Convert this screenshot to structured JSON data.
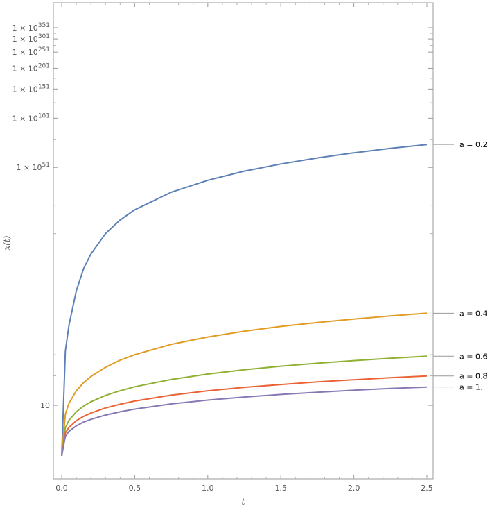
{
  "chart_data": {
    "type": "line",
    "title": "",
    "xlabel": "t",
    "ylabel": "x(t)",
    "y_scale": "log-log",
    "xlim": [
      0,
      2.5
    ],
    "grid": false,
    "legend": "line labels at right end of each curve",
    "x_ticks": [
      "0.0",
      "0.5",
      "1.0",
      "1.5",
      "2.0",
      "2.5"
    ],
    "y_ticks": [
      {
        "value": 10,
        "mantissa": "10",
        "exponent": ""
      },
      {
        "value": "1e51",
        "mantissa": "1 × 10",
        "exponent": "51"
      },
      {
        "value": "1e101",
        "mantissa": "1 × 10",
        "exponent": "101"
      },
      {
        "value": "1e151",
        "mantissa": "1 × 10",
        "exponent": "151"
      },
      {
        "value": "1e201",
        "mantissa": "1 × 10",
        "exponent": "201"
      },
      {
        "value": "1e251",
        "mantissa": "1 × 10",
        "exponent": "251"
      },
      {
        "value": "1e301",
        "mantissa": "1 × 10",
        "exponent": "301"
      },
      {
        "value": "1e351",
        "mantissa": "1 × 10",
        "exponent": "351"
      }
    ],
    "x": [
      0,
      0.025,
      0.05,
      0.1,
      0.15,
      0.2,
      0.3,
      0.4,
      0.5,
      0.75,
      1.0,
      1.25,
      1.5,
      1.75,
      2.0,
      2.25,
      2.5
    ],
    "series": [
      {
        "name": "a = 0.2",
        "color": "#5e81b5",
        "log10_values": [
          0,
          3.2,
          5.0,
          8.6,
          12.0,
          14.9,
          20.0,
          24.3,
          28.1,
          36.0,
          42.6,
          48.4,
          53.5,
          58.2,
          62.5,
          66.5,
          70.2
        ]
      },
      {
        "name": "a = 0.4",
        "color": "#e19c24",
        "log10_values": [
          0,
          0.77,
          1.06,
          1.44,
          1.73,
          1.97,
          2.37,
          2.71,
          3.0,
          3.61,
          4.1,
          4.52,
          4.89,
          5.22,
          5.52,
          5.8,
          6.06
        ]
      },
      {
        "name": "a = 0.6",
        "color": "#8fb032",
        "log10_values": [
          0,
          0.47,
          0.63,
          0.83,
          0.98,
          1.1,
          1.29,
          1.44,
          1.58,
          1.85,
          2.07,
          2.26,
          2.42,
          2.56,
          2.69,
          2.81,
          2.92
        ]
      },
      {
        "name": "a = 0.8",
        "color": "#eb6235",
        "log10_values": [
          0,
          0.37,
          0.48,
          0.62,
          0.72,
          0.8,
          0.93,
          1.03,
          1.12,
          1.3,
          1.44,
          1.56,
          1.66,
          1.76,
          1.84,
          1.92,
          1.99
        ]
      },
      {
        "name": "a = 1.",
        "color": "#8778b3",
        "log10_values": [
          0,
          0.31,
          0.4,
          0.51,
          0.59,
          0.65,
          0.75,
          0.83,
          0.9,
          1.04,
          1.15,
          1.24,
          1.32,
          1.39,
          1.46,
          1.52,
          1.57
        ]
      }
    ]
  }
}
